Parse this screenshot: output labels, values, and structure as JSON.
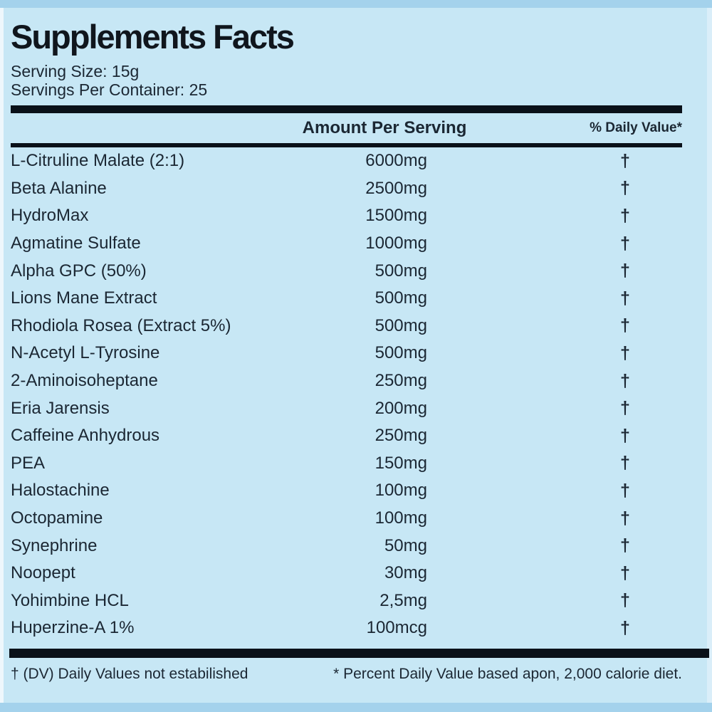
{
  "label": {
    "title": "Supplements Facts",
    "serving_size": "Serving Size: 15g",
    "servings_per_container": "Servings Per Container: 25",
    "columns": {
      "amount_header": "Amount Per Serving",
      "daily_value_header": "% Daily Value*"
    },
    "rows": [
      {
        "name": "L-Citruline Malate (2:1)",
        "amount": "6000mg",
        "daily_value": "†"
      },
      {
        "name": "Beta Alanine",
        "amount": "2500mg",
        "daily_value": "†"
      },
      {
        "name": "HydroMax",
        "amount": "1500mg",
        "daily_value": "†"
      },
      {
        "name": "Agmatine Sulfate",
        "amount": "1000mg",
        "daily_value": "†"
      },
      {
        "name": "Alpha GPC (50%)",
        "amount": "500mg",
        "daily_value": "†"
      },
      {
        "name": "Lions Mane Extract",
        "amount": "500mg",
        "daily_value": "†"
      },
      {
        "name": "Rhodiola Rosea (Extract 5%)",
        "amount": "500mg",
        "daily_value": "†"
      },
      {
        "name": "N-Acetyl L-Tyrosine",
        "amount": "500mg",
        "daily_value": "†"
      },
      {
        "name": "2-Aminoisoheptane",
        "amount": "250mg",
        "daily_value": "†"
      },
      {
        "name": "Eria Jarensis",
        "amount": "200mg",
        "daily_value": "†"
      },
      {
        "name": "Caffeine Anhydrous",
        "amount": "250mg",
        "daily_value": "†"
      },
      {
        "name": "PEA",
        "amount": "150mg",
        "daily_value": "†"
      },
      {
        "name": "Halostachine",
        "amount": "100mg",
        "daily_value": "†"
      },
      {
        "name": "Octopamine",
        "amount": "100mg",
        "daily_value": "†"
      },
      {
        "name": "Synephrine",
        "amount": "50mg",
        "daily_value": "†"
      },
      {
        "name": "Noopept",
        "amount": "30mg",
        "daily_value": "†"
      },
      {
        "name": "Yohimbine HCL",
        "amount": "2,5mg",
        "daily_value": "†"
      },
      {
        "name": "Huperzine-A 1%",
        "amount": "100mcg",
        "daily_value": "†"
      }
    ],
    "footnotes": {
      "daily_value_note": "† (DV) Daily Values not estabilished",
      "percent_note": "* Percent Daily Value based apon, 2,000 calorie diet."
    },
    "colors": {
      "background": "#c7e7f5",
      "edge_strip": "#a4d2ec",
      "text": "#1b2733",
      "rule": "#0a1119"
    }
  }
}
